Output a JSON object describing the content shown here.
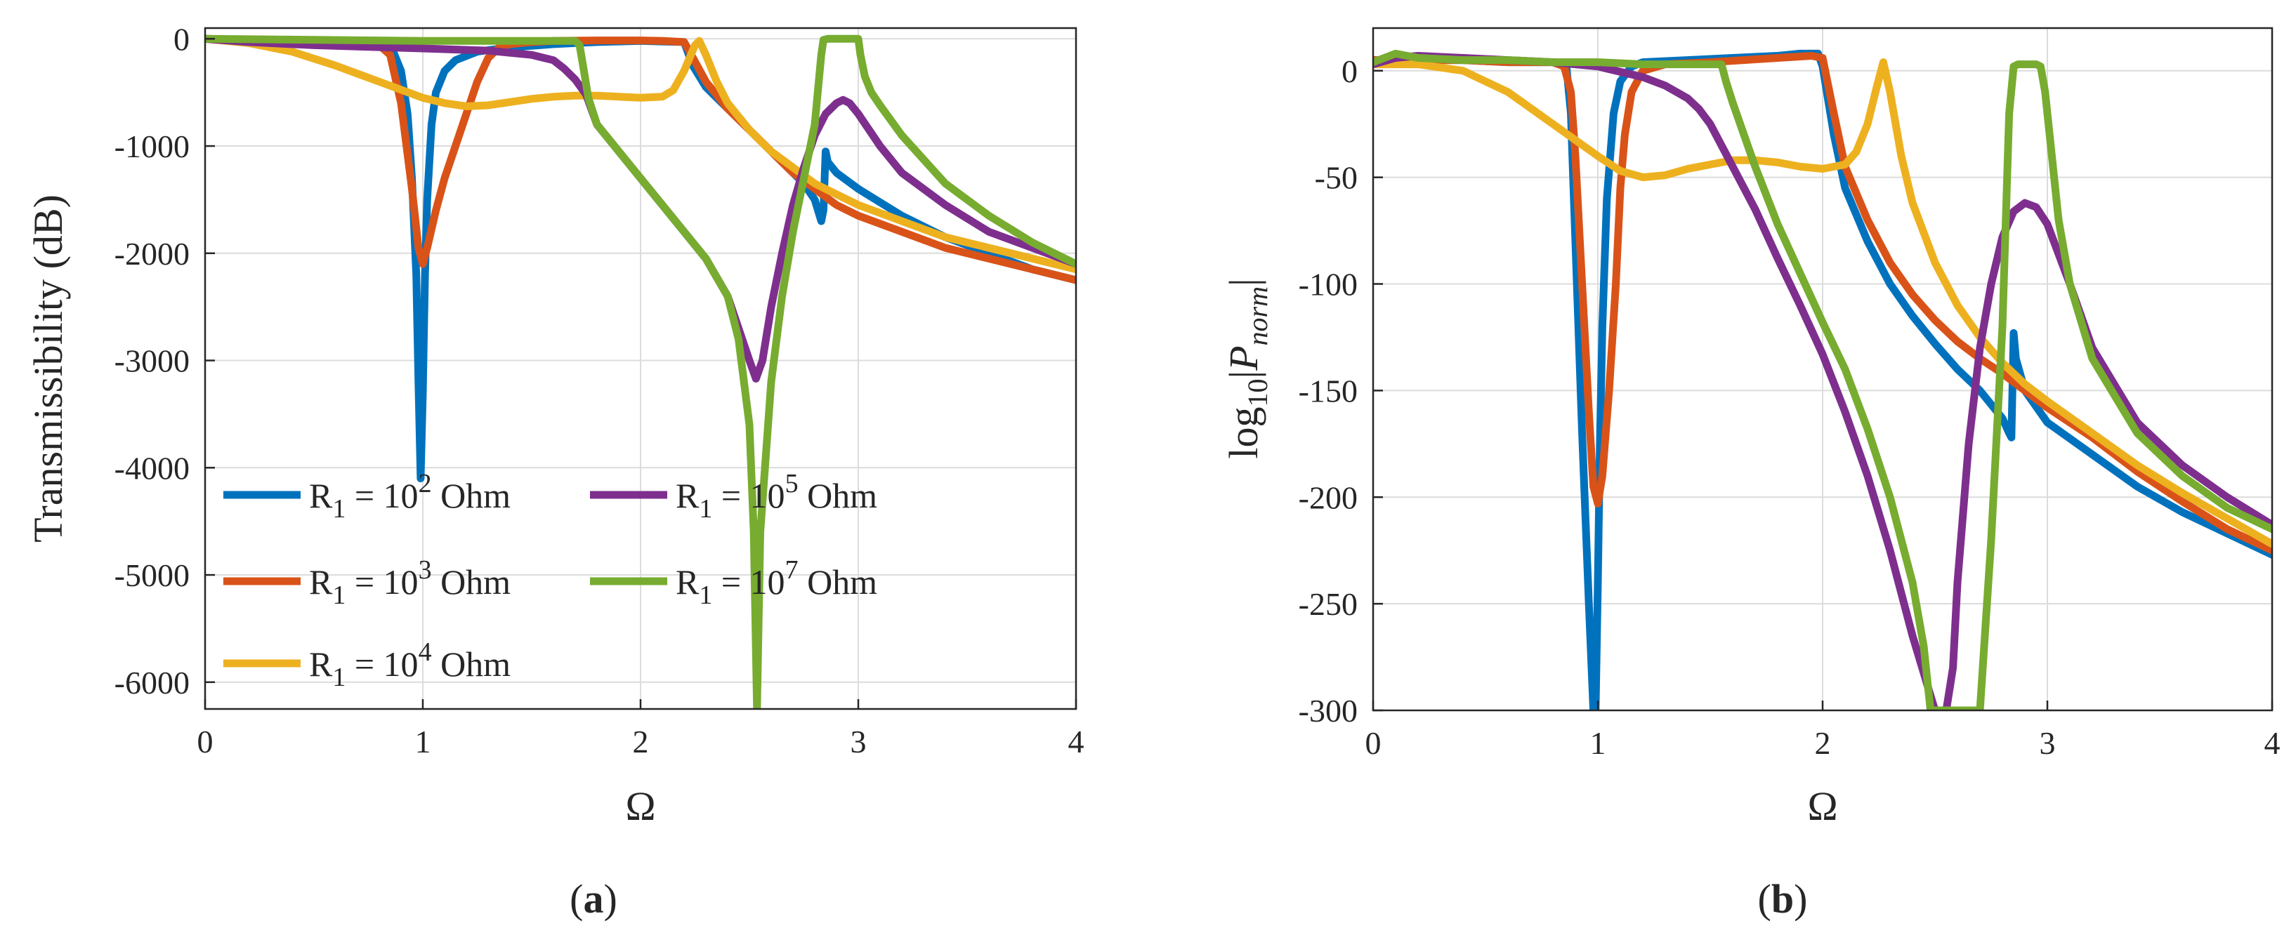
{
  "chart_data": [
    {
      "type": "line",
      "panel_label": "a",
      "xlabel": "Ω",
      "ylabel": "Transmissibility (dB)",
      "xlim": [
        0,
        4
      ],
      "ylim": [
        -6250,
        100
      ],
      "xticks": [
        0,
        1,
        2,
        3,
        4
      ],
      "yticks": [
        0,
        -1000,
        -2000,
        -3000,
        -4000,
        -5000,
        -6000
      ],
      "grid": true,
      "legend_position": "lower-left",
      "series": [
        {
          "name": "R1 = 10^2 Ohm",
          "label_prefix": "R",
          "label_sub": "1",
          "label_mid": " = 10",
          "label_sup": "2",
          "label_suffix": " Ohm",
          "color": "#0072BD",
          "x": [
            0,
            0.1,
            0.2,
            0.4,
            0.6,
            0.8,
            0.86,
            0.9,
            0.93,
            0.95,
            0.97,
            0.98,
            0.99,
            1.0,
            1.01,
            1.02,
            1.04,
            1.06,
            1.1,
            1.15,
            1.25,
            1.4,
            1.6,
            1.8,
            2.0,
            2.1,
            2.2,
            2.24,
            2.3,
            2.4,
            2.5,
            2.6,
            2.7,
            2.75,
            2.8,
            2.83,
            2.84,
            2.85,
            2.86,
            2.9,
            3.0,
            3.2,
            3.4,
            3.6,
            3.8,
            4.0
          ],
          "y": [
            0,
            -10,
            -20,
            -30,
            -50,
            -70,
            -100,
            -300,
            -700,
            -1300,
            -2200,
            -3200,
            -4100,
            -3300,
            -2200,
            -1500,
            -800,
            -500,
            -300,
            -200,
            -120,
            -80,
            -50,
            -30,
            -20,
            -25,
            -30,
            -250,
            -450,
            -650,
            -850,
            -1050,
            -1250,
            -1350,
            -1500,
            -1700,
            -1600,
            -1050,
            -1150,
            -1250,
            -1400,
            -1650,
            -1850,
            -2000,
            -2150,
            -2250
          ]
        },
        {
          "name": "R1 = 10^3 Ohm",
          "label_prefix": "R",
          "label_sub": "1",
          "label_mid": " = 10",
          "label_sup": "3",
          "label_suffix": " Ohm",
          "color": "#D95319",
          "x": [
            0,
            0.2,
            0.4,
            0.6,
            0.8,
            0.85,
            0.9,
            0.95,
            0.98,
            1.0,
            1.02,
            1.06,
            1.1,
            1.15,
            1.2,
            1.25,
            1.3,
            1.35,
            1.4,
            1.5,
            1.6,
            1.8,
            2.0,
            2.1,
            2.2,
            2.22,
            2.3,
            2.4,
            2.5,
            2.6,
            2.7,
            2.8,
            2.9,
            3.0,
            3.2,
            3.4,
            3.6,
            3.8,
            4.0
          ],
          "y": [
            0,
            -10,
            -20,
            -30,
            -60,
            -150,
            -600,
            -1400,
            -1950,
            -2100,
            -1950,
            -1600,
            -1300,
            -1000,
            -700,
            -400,
            -180,
            -80,
            -50,
            -30,
            -20,
            -15,
            -15,
            -20,
            -30,
            -100,
            -400,
            -650,
            -850,
            -1050,
            -1250,
            -1400,
            -1550,
            -1650,
            -1800,
            -1950,
            -2050,
            -2150,
            -2250
          ]
        },
        {
          "name": "R1 = 10^4 Ohm",
          "label_prefix": "R",
          "label_sub": "1",
          "label_mid": " = 10",
          "label_sup": "4",
          "label_suffix": " Ohm",
          "color": "#EDB120",
          "x": [
            0,
            0.2,
            0.4,
            0.6,
            0.8,
            1.0,
            1.1,
            1.2,
            1.3,
            1.4,
            1.5,
            1.6,
            1.7,
            1.8,
            1.9,
            2.0,
            2.1,
            2.15,
            2.2,
            2.25,
            2.27,
            2.3,
            2.35,
            2.4,
            2.5,
            2.6,
            2.7,
            2.8,
            2.9,
            3.0,
            3.2,
            3.4,
            3.6,
            3.8,
            4.0
          ],
          "y": [
            0,
            -40,
            -120,
            -250,
            -400,
            -550,
            -600,
            -630,
            -620,
            -590,
            -560,
            -540,
            -530,
            -530,
            -540,
            -550,
            -540,
            -480,
            -300,
            -60,
            -20,
            -150,
            -400,
            -600,
            -850,
            -1050,
            -1200,
            -1350,
            -1450,
            -1550,
            -1700,
            -1850,
            -1950,
            -2050,
            -2150
          ]
        },
        {
          "name": "R1 = 10^5 Ohm",
          "label_prefix": "R",
          "label_sub": "1",
          "label_mid": " = 10",
          "label_sup": "5",
          "label_suffix": " Ohm",
          "color": "#7E2F8E",
          "x": [
            0,
            0.2,
            0.5,
            1.0,
            1.3,
            1.5,
            1.6,
            1.65,
            1.7,
            1.75,
            1.8,
            1.9,
            2.0,
            2.1,
            2.2,
            2.3,
            2.4,
            2.45,
            2.5,
            2.53,
            2.56,
            2.6,
            2.65,
            2.7,
            2.75,
            2.8,
            2.85,
            2.9,
            2.93,
            2.96,
            3.0,
            3.1,
            3.2,
            3.4,
            3.6,
            3.8,
            4.0
          ],
          "y": [
            0,
            -30,
            -60,
            -90,
            -110,
            -150,
            -200,
            -280,
            -380,
            -520,
            -800,
            -1050,
            -1300,
            -1550,
            -1800,
            -2050,
            -2400,
            -2700,
            -3000,
            -3170,
            -3000,
            -2500,
            -2000,
            -1550,
            -1200,
            -900,
            -700,
            -600,
            -570,
            -600,
            -700,
            -1000,
            -1250,
            -1550,
            -1800,
            -1950,
            -2100
          ]
        },
        {
          "name": "R1 = 10^7 Ohm",
          "label_prefix": "R",
          "label_sub": "1",
          "label_mid": " = 10",
          "label_sup": "7",
          "label_suffix": " Ohm",
          "color": "#77AC30",
          "x": [
            0,
            0.5,
            1.0,
            1.5,
            1.7,
            1.72,
            1.74,
            1.76,
            1.8,
            1.9,
            2.0,
            2.1,
            2.2,
            2.3,
            2.4,
            2.45,
            2.5,
            2.52,
            2.535,
            2.55,
            2.6,
            2.65,
            2.7,
            2.75,
            2.8,
            2.83,
            2.84,
            2.86,
            2.9,
            2.95,
            3.0,
            3.01,
            3.03,
            3.06,
            3.1,
            3.2,
            3.4,
            3.6,
            3.8,
            4.0
          ],
          "y": [
            0,
            -10,
            -20,
            -20,
            -20,
            -60,
            -300,
            -550,
            -800,
            -1050,
            -1300,
            -1550,
            -1800,
            -2050,
            -2400,
            -2800,
            -3600,
            -4600,
            -6250,
            -4600,
            -3200,
            -2400,
            -1800,
            -1300,
            -800,
            -150,
            -10,
            0,
            0,
            0,
            0,
            -150,
            -350,
            -500,
            -620,
            -900,
            -1350,
            -1650,
            -1900,
            -2100
          ]
        }
      ]
    },
    {
      "type": "line",
      "panel_label": "b",
      "xlabel": "Ω",
      "ylabel_prefix": "log",
      "ylabel_sub": "10",
      "ylabel_var": "P",
      "ylabel_var_sub": "norm",
      "xlim": [
        0,
        4
      ],
      "ylim": [
        -300,
        20
      ],
      "xticks": [
        0,
        1,
        2,
        3,
        4
      ],
      "yticks": [
        0,
        -50,
        -100,
        -150,
        -200,
        -250,
        -300
      ],
      "grid": true,
      "series": [
        {
          "name": "R1 = 10^2 Ohm",
          "color": "#0072BD",
          "x": [
            0,
            0.05,
            0.1,
            0.2,
            0.4,
            0.6,
            0.8,
            0.86,
            0.88,
            0.9,
            0.93,
            0.96,
            0.98,
            0.99,
            1.0,
            1.01,
            1.02,
            1.04,
            1.07,
            1.1,
            1.15,
            1.2,
            1.4,
            1.6,
            1.8,
            1.9,
            1.98,
            2.0,
            2.05,
            2.1,
            2.2,
            2.3,
            2.4,
            2.5,
            2.6,
            2.7,
            2.8,
            2.83,
            2.84,
            2.85,
            2.86,
            2.9,
            3.0,
            3.2,
            3.4,
            3.6,
            3.8,
            4.0
          ],
          "y": [
            5,
            5,
            6,
            5,
            5,
            4,
            4,
            2,
            -20,
            -80,
            -170,
            -250,
            -300,
            -300,
            -240,
            -170,
            -120,
            -60,
            -20,
            -5,
            2,
            4,
            5,
            6,
            7,
            8,
            8,
            2,
            -30,
            -55,
            -80,
            -100,
            -115,
            -128,
            -140,
            -150,
            -163,
            -170,
            -172,
            -123,
            -135,
            -150,
            -165,
            -180,
            -195,
            -207,
            -217,
            -227
          ]
        },
        {
          "name": "R1 = 10^3 Ohm",
          "color": "#D95319",
          "x": [
            0,
            0.2,
            0.4,
            0.6,
            0.8,
            0.85,
            0.88,
            0.9,
            0.93,
            0.96,
            0.98,
            1.0,
            1.02,
            1.05,
            1.08,
            1.1,
            1.12,
            1.15,
            1.2,
            1.3,
            1.5,
            1.8,
            1.95,
            2.0,
            2.05,
            2.1,
            2.2,
            2.3,
            2.4,
            2.5,
            2.6,
            2.7,
            2.8,
            2.9,
            3.0,
            3.2,
            3.4,
            3.6,
            3.8,
            4.0
          ],
          "y": [
            5,
            5,
            5,
            4,
            4,
            2,
            -10,
            -40,
            -100,
            -160,
            -195,
            -203,
            -190,
            -150,
            -100,
            -55,
            -30,
            -10,
            0,
            3,
            4,
            6,
            7,
            6,
            -20,
            -45,
            -70,
            -90,
            -105,
            -117,
            -127,
            -135,
            -142,
            -150,
            -158,
            -172,
            -188,
            -202,
            -215,
            -225
          ]
        },
        {
          "name": "R1 = 10^4 Ohm",
          "color": "#EDB120",
          "x": [
            0,
            0.2,
            0.4,
            0.6,
            0.8,
            1.0,
            1.1,
            1.2,
            1.3,
            1.4,
            1.5,
            1.6,
            1.7,
            1.8,
            1.9,
            2.0,
            2.1,
            2.15,
            2.2,
            2.24,
            2.27,
            2.3,
            2.35,
            2.4,
            2.5,
            2.6,
            2.7,
            2.8,
            2.9,
            3.0,
            3.2,
            3.4,
            3.6,
            3.8,
            4.0
          ],
          "y": [
            3,
            3,
            0,
            -10,
            -25,
            -40,
            -47,
            -50,
            -49,
            -46,
            -44,
            -42,
            -42,
            -43,
            -45,
            -46,
            -44,
            -38,
            -25,
            -8,
            4,
            -10,
            -40,
            -62,
            -90,
            -110,
            -125,
            -137,
            -147,
            -155,
            -170,
            -185,
            -198,
            -210,
            -222
          ]
        },
        {
          "name": "R1 = 10^5 Ohm",
          "color": "#7E2F8E",
          "x": [
            0,
            0.1,
            0.2,
            0.4,
            0.6,
            0.8,
            1.0,
            1.2,
            1.3,
            1.4,
            1.45,
            1.5,
            1.55,
            1.6,
            1.7,
            1.8,
            1.9,
            2.0,
            2.1,
            2.2,
            2.3,
            2.4,
            2.5,
            2.55,
            2.58,
            2.6,
            2.65,
            2.7,
            2.75,
            2.8,
            2.85,
            2.9,
            2.95,
            3.0,
            3.1,
            3.2,
            3.4,
            3.6,
            3.8,
            4.0
          ],
          "y": [
            3,
            6,
            7,
            6,
            5,
            4,
            2,
            -3,
            -7,
            -13,
            -18,
            -25,
            -35,
            -45,
            -65,
            -88,
            -110,
            -133,
            -160,
            -190,
            -225,
            -265,
            -300,
            -300,
            -280,
            -240,
            -175,
            -130,
            -100,
            -78,
            -66,
            -62,
            -64,
            -72,
            -100,
            -130,
            -165,
            -185,
            -200,
            -213
          ]
        },
        {
          "name": "R1 = 10^7 Ohm",
          "color": "#77AC30",
          "x": [
            0,
            0.05,
            0.1,
            0.2,
            0.4,
            0.6,
            0.8,
            1.0,
            1.2,
            1.4,
            1.5,
            1.55,
            1.57,
            1.6,
            1.65,
            1.7,
            1.8,
            1.9,
            2.0,
            2.1,
            2.2,
            2.3,
            2.4,
            2.45,
            2.48,
            2.5,
            2.7,
            2.75,
            2.8,
            2.83,
            2.85,
            2.87,
            2.9,
            2.95,
            2.97,
            2.99,
            3.02,
            3.05,
            3.1,
            3.2,
            3.4,
            3.6,
            3.8,
            4.0
          ],
          "y": [
            4,
            6,
            8,
            6,
            5,
            5,
            4,
            4,
            3,
            3,
            3,
            3,
            -5,
            -15,
            -30,
            -45,
            -72,
            -95,
            -118,
            -140,
            -168,
            -200,
            -240,
            -270,
            -300,
            -300,
            -300,
            -220,
            -120,
            -20,
            2,
            3,
            3,
            3,
            2,
            -10,
            -40,
            -70,
            -100,
            -135,
            -170,
            -190,
            -205,
            -215
          ]
        }
      ]
    }
  ]
}
